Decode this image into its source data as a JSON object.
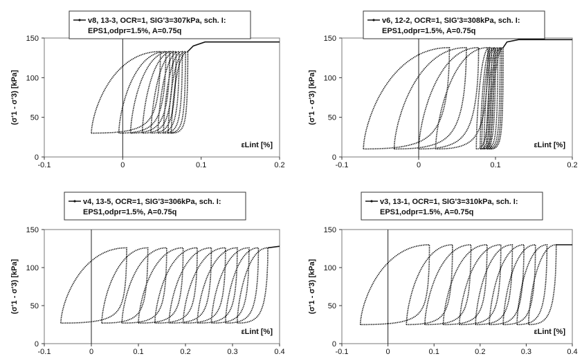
{
  "chart_data": [
    {
      "type": "line",
      "legend": {
        "line1": "v8, 13-3, OCR=1, SIG'3=307kPa, sch. I:",
        "line2": "EPS1,odpr=1.5%, A=0.75q"
      },
      "xlabel": "εLint  [%]",
      "ylabel": "(σ'1 - σ'3)  [kPa]",
      "xlim": [
        -0.1,
        0.2
      ],
      "ylim": [
        0,
        150
      ],
      "xticks": [
        "-0.1",
        "0",
        "0.1",
        "0.2"
      ],
      "yticks": [
        "0",
        "50",
        "100",
        "150"
      ],
      "cycles": [
        {
          "x0": -0.04,
          "x1": 0.048,
          "w": 0.03
        },
        {
          "x0": -0.005,
          "x1": 0.055,
          "w": 0.03
        },
        {
          "x0": 0.01,
          "x1": 0.06,
          "w": 0.026
        },
        {
          "x0": 0.025,
          "x1": 0.064,
          "w": 0.022
        },
        {
          "x0": 0.036,
          "x1": 0.068,
          "w": 0.018
        },
        {
          "x0": 0.045,
          "x1": 0.072,
          "w": 0.015
        },
        {
          "x0": 0.052,
          "x1": 0.076,
          "w": 0.012
        },
        {
          "x0": 0.058,
          "x1": 0.08,
          "w": 0.01
        },
        {
          "x0": 0.062,
          "x1": 0.083,
          "w": 0.008
        }
      ],
      "ymin": 30,
      "ymax": 133,
      "final": [
        [
          0.083,
          133
        ],
        [
          0.09,
          140
        ],
        [
          0.105,
          145
        ],
        [
          0.2,
          145
        ]
      ],
      "series": [
        {
          "name": "v8, 13-3, OCR=1, SIG'3=307kPa, sch. I: EPS1,odpr=1.5%, A=0.75q"
        }
      ]
    },
    {
      "type": "line",
      "legend": {
        "line1": "v6, 12-2, OCR=1, SIG'3=308kPa, sch. I:",
        "line2": "EPS1,odpr=1.5%, A=0.75q"
      },
      "xlabel": "εLint  [%]",
      "ylabel": "(σ'1 - σ'3)  [kPa]",
      "xlim": [
        -0.1,
        0.2
      ],
      "ylim": [
        0,
        150
      ],
      "xticks": [
        "-0.1",
        "0",
        "0.1",
        "0.2"
      ],
      "yticks": [
        "0",
        "50",
        "100",
        "150"
      ],
      "cycles": [
        {
          "x0": -0.072,
          "x1": 0.04,
          "w": 0.05
        },
        {
          "x0": -0.032,
          "x1": 0.062,
          "w": 0.045
        },
        {
          "x0": 0.0,
          "x1": 0.078,
          "w": 0.04
        },
        {
          "x0": 0.022,
          "x1": 0.09,
          "w": 0.03
        },
        {
          "x0": 0.075,
          "x1": 0.092,
          "w": 0.01
        },
        {
          "x0": 0.08,
          "x1": 0.095,
          "w": 0.009
        },
        {
          "x0": 0.082,
          "x1": 0.098,
          "w": 0.008
        },
        {
          "x0": 0.085,
          "x1": 0.1,
          "w": 0.008
        },
        {
          "x0": 0.088,
          "x1": 0.103,
          "w": 0.007
        },
        {
          "x0": 0.09,
          "x1": 0.106,
          "w": 0.007
        },
        {
          "x0": 0.092,
          "x1": 0.108,
          "w": 0.006
        },
        {
          "x0": 0.094,
          "x1": 0.11,
          "w": 0.006
        }
      ],
      "ymin": 10,
      "ymax": 138,
      "final": [
        [
          0.11,
          138
        ],
        [
          0.115,
          145
        ],
        [
          0.13,
          148
        ],
        [
          0.2,
          148
        ]
      ],
      "series": [
        {
          "name": "v6, 12-2, OCR=1, SIG'3=308kPa, sch. I: EPS1,odpr=1.5%, A=0.75q"
        }
      ]
    },
    {
      "type": "line",
      "legend": {
        "line1": "v4, 13-5, OCR=1, SIG'3=306kPa, sch. I:",
        "line2": "EPS1,odpr=1.5%, A=0.75q"
      },
      "xlabel": "εLint  [%]",
      "ylabel": "(σ'1 - σ'3)  [kPa]",
      "xlim": [
        -0.1,
        0.4
      ],
      "ylim": [
        0,
        150
      ],
      "xticks": [
        "-0.1",
        "0",
        "0.1",
        "0.2",
        "0.3",
        "0.4"
      ],
      "yticks": [
        "0",
        "50",
        "100",
        "150"
      ],
      "cycles": [
        {
          "x0": -0.065,
          "x1": 0.075,
          "w": 0.035
        },
        {
          "x0": 0.022,
          "x1": 0.12,
          "w": 0.035
        },
        {
          "x0": 0.065,
          "x1": 0.16,
          "w": 0.035
        },
        {
          "x0": 0.1,
          "x1": 0.195,
          "w": 0.035
        },
        {
          "x0": 0.135,
          "x1": 0.225,
          "w": 0.035
        },
        {
          "x0": 0.165,
          "x1": 0.255,
          "w": 0.035
        },
        {
          "x0": 0.195,
          "x1": 0.285,
          "w": 0.035
        },
        {
          "x0": 0.225,
          "x1": 0.31,
          "w": 0.035
        },
        {
          "x0": 0.255,
          "x1": 0.335,
          "w": 0.035
        },
        {
          "x0": 0.285,
          "x1": 0.355,
          "w": 0.035
        },
        {
          "x0": 0.31,
          "x1": 0.375,
          "w": 0.035
        }
      ],
      "ymin": 27,
      "ymax": 126,
      "final": [
        [
          0.375,
          126
        ],
        [
          0.4,
          128
        ]
      ],
      "series": [
        {
          "name": "v4, 13-5, OCR=1, SIG'3=306kPa, sch. I: EPS1,odpr=1.5%, A=0.75q"
        }
      ]
    },
    {
      "type": "line",
      "legend": {
        "line1": "v3, 13-1, OCR=1, SIG'3=310kPa, sch. I:",
        "line2": "EPS1,odpr=1.5%, A=0.75q"
      },
      "xlabel": "εLint  [%]",
      "ylabel": "(σ'1 - σ'3)  [kPa]",
      "xlim": [
        -0.1,
        0.4
      ],
      "ylim": [
        0,
        150
      ],
      "xticks": [
        "-0.1",
        "0",
        "0.1",
        "0.2",
        "0.3",
        "0.4"
      ],
      "yticks": [
        "0",
        "50",
        "100",
        "150"
      ],
      "cycles": [
        {
          "x0": -0.06,
          "x1": 0.09,
          "w": 0.035
        },
        {
          "x0": 0.04,
          "x1": 0.14,
          "w": 0.035
        },
        {
          "x0": 0.08,
          "x1": 0.18,
          "w": 0.035
        },
        {
          "x0": 0.12,
          "x1": 0.215,
          "w": 0.035
        },
        {
          "x0": 0.155,
          "x1": 0.245,
          "w": 0.035
        },
        {
          "x0": 0.19,
          "x1": 0.27,
          "w": 0.035
        },
        {
          "x0": 0.22,
          "x1": 0.295,
          "w": 0.035
        },
        {
          "x0": 0.25,
          "x1": 0.32,
          "w": 0.035
        },
        {
          "x0": 0.28,
          "x1": 0.345,
          "w": 0.035
        },
        {
          "x0": 0.305,
          "x1": 0.365,
          "w": 0.035
        }
      ],
      "ymin": 25,
      "ymax": 130,
      "final": [
        [
          0.365,
          130
        ],
        [
          0.4,
          130
        ]
      ],
      "series": [
        {
          "name": "v3, 13-1, OCR=1, SIG'3=310kPa, sch. I: EPS1,odpr=1.5%, A=0.75q"
        }
      ]
    }
  ]
}
